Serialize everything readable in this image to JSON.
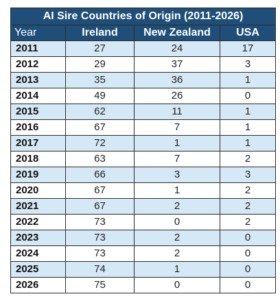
{
  "chart_data": {
    "type": "table",
    "title": "AI Sire Countries of Origin (2011-2026)",
    "columns": [
      "Year",
      "Ireland",
      "New Zealand",
      "USA"
    ],
    "rows": [
      [
        "2011",
        "27",
        "24",
        "17"
      ],
      [
        "2012",
        "29",
        "37",
        "3"
      ],
      [
        "2013",
        "35",
        "36",
        "1"
      ],
      [
        "2014",
        "49",
        "26",
        "0"
      ],
      [
        "2015",
        "62",
        "11",
        "1"
      ],
      [
        "2016",
        "67",
        "7",
        "1"
      ],
      [
        "2017",
        "72",
        "1",
        "1"
      ],
      [
        "2018",
        "63",
        "7",
        "2"
      ],
      [
        "2019",
        "66",
        "3",
        "3"
      ],
      [
        "2020",
        "67",
        "1",
        "2"
      ],
      [
        "2021",
        "67",
        "2",
        "2"
      ],
      [
        "2022",
        "73",
        "0",
        "2"
      ],
      [
        "2023",
        "73",
        "2",
        "0"
      ],
      [
        "2024",
        "73",
        "2",
        "0"
      ],
      [
        "2025",
        "74",
        "1",
        "0"
      ],
      [
        "2026",
        "75",
        "0",
        "0"
      ]
    ]
  },
  "colors": {
    "header_bg": "#1f4e79",
    "header_text": "#ffffff",
    "band_bg": "#d5e8f5",
    "border": "#2b2b2b"
  }
}
